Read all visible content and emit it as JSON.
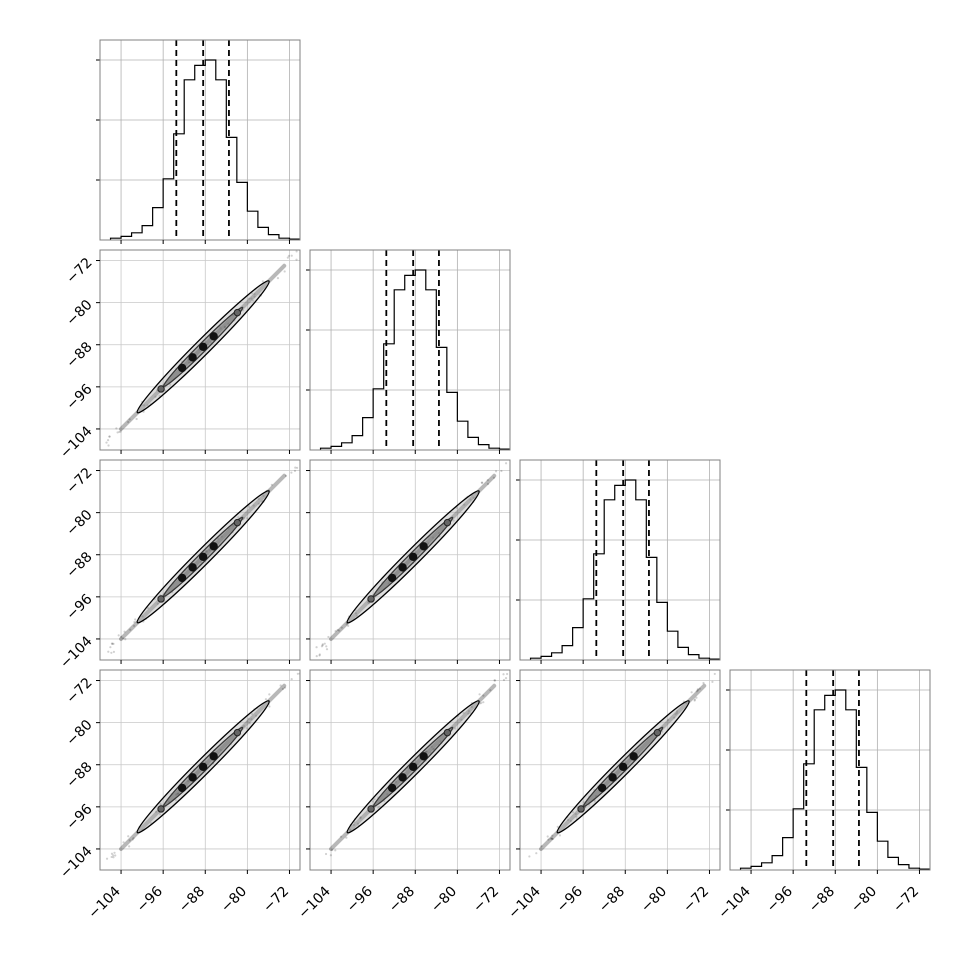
{
  "chart_data": {
    "type": "corner",
    "n_params": 4,
    "params": [
      "",
      "",
      "",
      ""
    ],
    "axis_range": [
      -108,
      -70
    ],
    "tick_values": [
      -104,
      -96,
      -88,
      -80,
      -72
    ],
    "tick_labels": [
      "−104",
      "−96",
      "−88",
      "−80",
      "−72"
    ],
    "grid": true,
    "quantiles": [
      [
        -93.5,
        -88.4,
        -83.5
      ],
      [
        -93.5,
        -88.4,
        -83.5
      ],
      [
        -93.5,
        -88.4,
        -83.5
      ],
      [
        -93.5,
        -88.4,
        -83.5
      ]
    ],
    "histograms": [
      {
        "bin_edges": [
          -106,
          -104,
          -102,
          -100,
          -98,
          -96,
          -94,
          -92,
          -90,
          -88,
          -86,
          -84,
          -82,
          -80,
          -78,
          -76,
          -74,
          -72,
          -70
        ],
        "counts": [
          1,
          2,
          4,
          8,
          18,
          34,
          59,
          89,
          97,
          100,
          89,
          57,
          32,
          16,
          7,
          3,
          1,
          0.5
        ]
      },
      {
        "bin_edges": [
          -106,
          -104,
          -102,
          -100,
          -98,
          -96,
          -94,
          -92,
          -90,
          -88,
          -86,
          -84,
          -82,
          -80,
          -78,
          -76,
          -74,
          -72,
          -70
        ],
        "counts": [
          1,
          2,
          4,
          8,
          18,
          34,
          59,
          89,
          97,
          100,
          89,
          57,
          32,
          16,
          7,
          3,
          1,
          0.5
        ]
      },
      {
        "bin_edges": [
          -106,
          -104,
          -102,
          -100,
          -98,
          -96,
          -94,
          -92,
          -90,
          -88,
          -86,
          -84,
          -82,
          -80,
          -78,
          -76,
          -74,
          -72,
          -70
        ],
        "counts": [
          1,
          2,
          4,
          8,
          18,
          34,
          59,
          89,
          97,
          100,
          89,
          57,
          32,
          16,
          7,
          3,
          1,
          0.5
        ]
      },
      {
        "bin_edges": [
          -106,
          -104,
          -102,
          -100,
          -98,
          -96,
          -94,
          -92,
          -90,
          -88,
          -86,
          -84,
          -82,
          -80,
          -78,
          -76,
          -74,
          -72,
          -70
        ],
        "counts": [
          1,
          2,
          4,
          8,
          18,
          34,
          59,
          89,
          97,
          100,
          89,
          57,
          32,
          16,
          7,
          3,
          1,
          0.5
        ]
      }
    ],
    "joint": {
      "center": [
        -88.4,
        -88.4
      ],
      "slope": 1.0,
      "sample_span": [
        -107,
        -70
      ],
      "contour_half_length": [
        7.5,
        12.5
      ],
      "contour_half_width": [
        0.55,
        1.0
      ]
    }
  }
}
